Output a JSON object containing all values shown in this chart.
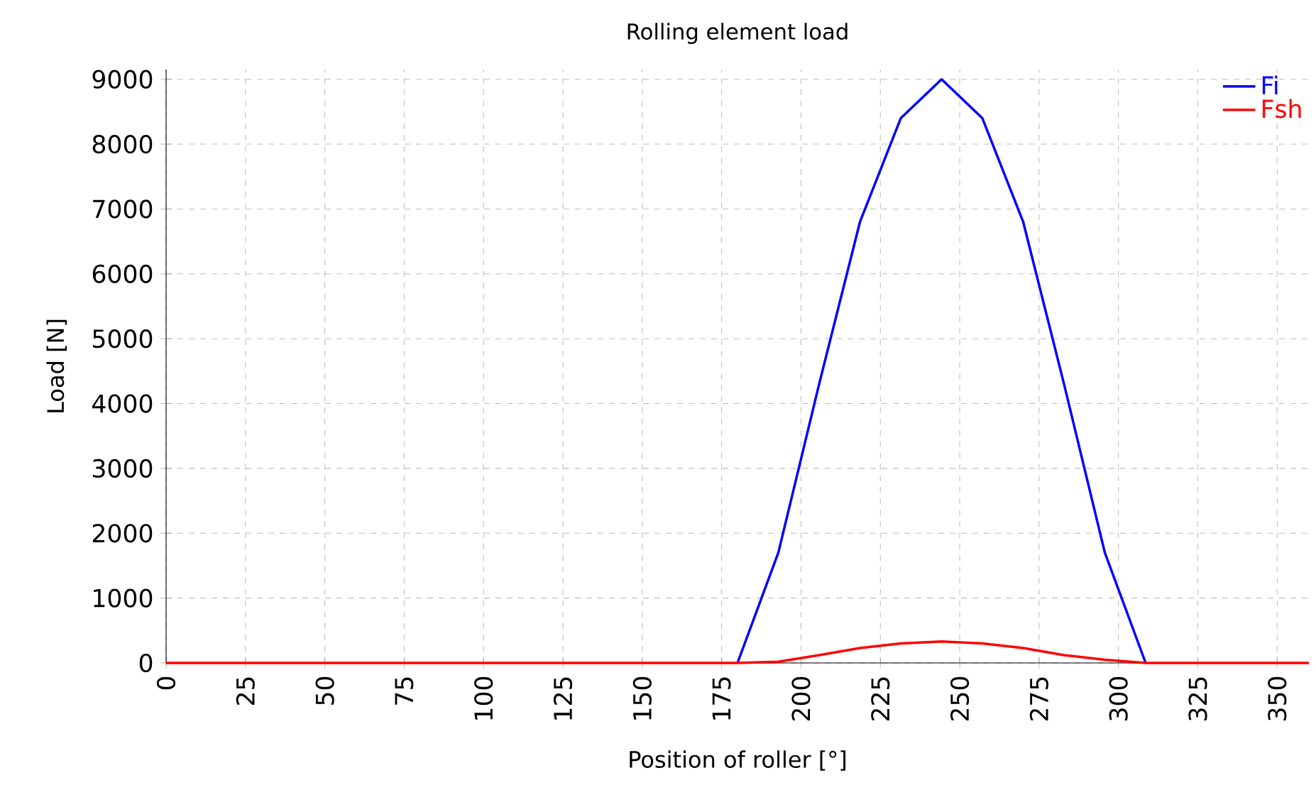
{
  "chart_data": {
    "type": "line",
    "title": "Rolling element load",
    "xlabel": "Position of roller [°]",
    "ylabel": "Load [N]",
    "x": [
      0,
      12.857,
      25.714,
      38.571,
      51.429,
      64.286,
      77.143,
      90,
      102.857,
      115.714,
      128.571,
      141.429,
      154.286,
      167.143,
      180,
      192.857,
      205.714,
      218.571,
      231.429,
      244.286,
      257.143,
      270,
      282.857,
      295.714,
      308.571,
      321.429,
      334.286,
      347.143,
      360
    ],
    "series": [
      {
        "name": "Fi",
        "color": "#0000ff",
        "values": [
          null,
          null,
          null,
          null,
          null,
          null,
          null,
          null,
          null,
          null,
          null,
          null,
          null,
          null,
          0,
          1700,
          4300,
          6800,
          8400,
          9000,
          8400,
          6800,
          4300,
          1700,
          0,
          null,
          null,
          null,
          null
        ]
      },
      {
        "name": "Fsh",
        "color": "#ff0000",
        "values": [
          0,
          0,
          0,
          0,
          0,
          0,
          0,
          0,
          0,
          0,
          0,
          0,
          0,
          0,
          0,
          20,
          120,
          230,
          300,
          330,
          300,
          230,
          120,
          50,
          0,
          0,
          0,
          0,
          0
        ]
      }
    ],
    "xlim": [
      0,
      360
    ],
    "ylim": [
      0,
      9150
    ],
    "xticks": [
      0,
      25,
      50,
      75,
      100,
      125,
      150,
      175,
      200,
      225,
      250,
      275,
      300,
      325,
      350
    ],
    "yticks": [
      0,
      1000,
      2000,
      3000,
      4000,
      5000,
      6000,
      7000,
      8000,
      9000
    ],
    "grid": true,
    "legend": "top right",
    "marker": "none",
    "line_style": "solid"
  }
}
